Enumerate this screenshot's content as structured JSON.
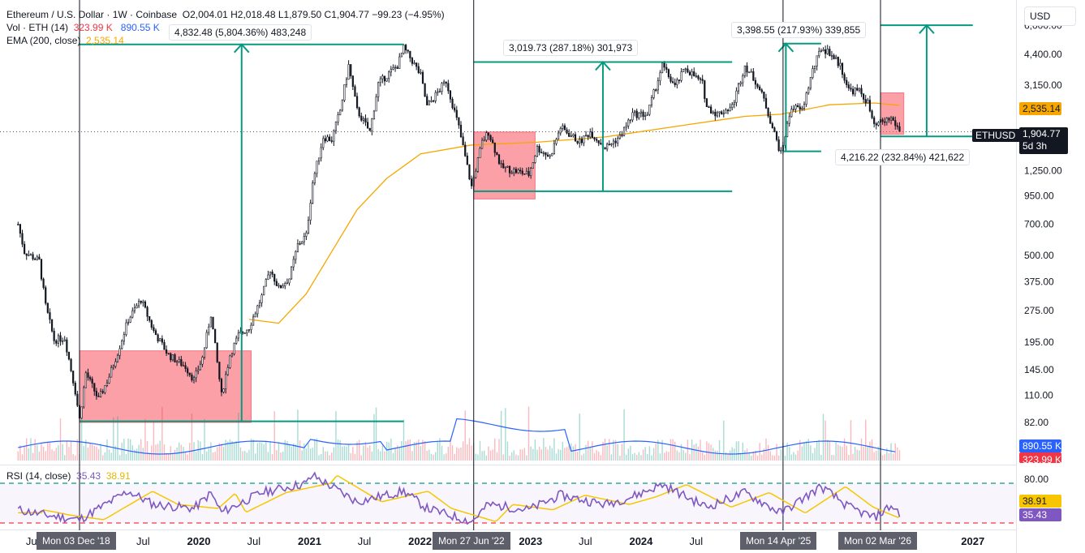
{
  "header": {
    "symbol_line": "Ethereum / U.S. Dollar · 1W · Coinbase",
    "ohlc": "O2,004.01  H2,018.48  L1,879.50  C1,904.77  −99.23 (−4.95%)",
    "vol_label": "Vol · ETH (14)",
    "vol_value1": "323.99 K",
    "vol_value2": "890.55 K",
    "ema_label": "EMA (200, close)",
    "ema_value": "2,535.14",
    "rsi_label": "RSI (14, close)",
    "rsi_value1": "35.43",
    "rsi_value2": "38.91"
  },
  "currency_button": "USD",
  "price_tags": {
    "ema": "2,535.14",
    "symbol": "ETHUSD",
    "last": "1,904.77",
    "countdown": "5d 3h",
    "vol_avg": "890.55 K",
    "vol_last": "323.99 K",
    "rsi_ma": "38.91",
    "rsi": "35.43"
  },
  "annotations": [
    {
      "text": "4,832.48 (5,804.36%) 483,248"
    },
    {
      "text": "3,019.73 (287.18%) 301,973"
    },
    {
      "text": "3,398.55 (217.93%) 339,855"
    },
    {
      "text": "4,216.22 (232.84%) 421,622"
    }
  ],
  "x_markers": [
    "Mon 03 Dec '18",
    "Mon 27 Jun '22",
    "Mon 14 Apr '25",
    "Mon 02 Mar '26"
  ],
  "colors": {
    "up": "#089981",
    "down": "#f23645",
    "ema": "#f7a600",
    "volume_ma": "#2962ff",
    "rsi": "#7e57c2",
    "rsi_ma": "#f7c600",
    "range_box": "#f7525f",
    "measure": "#089981"
  },
  "chart_data": {
    "type": "candlestick",
    "symbol": "ETHUSD",
    "interval": "1W",
    "scale": "log",
    "y_ticks": [
      6000,
      4400,
      3150,
      1250,
      950,
      700,
      500,
      375,
      275,
      195,
      145,
      110,
      82
    ],
    "y_tick_labels": [
      "6,000.00",
      "4,400.00",
      "3,150.00",
      "1,250.00",
      "950.00",
      "700.00",
      "500.00",
      "375.00",
      "275.00",
      "195.00",
      "145.00",
      "110.00",
      "82.00"
    ],
    "x_ticks": [
      {
        "date": "2018-07-01",
        "label": "Jul"
      },
      {
        "date": "2019-07-01",
        "label": "Jul"
      },
      {
        "date": "2020-01-01",
        "label": "2020"
      },
      {
        "date": "2020-07-01",
        "label": "Jul"
      },
      {
        "date": "2021-01-01",
        "label": "2021"
      },
      {
        "date": "2021-07-01",
        "label": "Jul"
      },
      {
        "date": "2022-01-01",
        "label": "2022"
      },
      {
        "date": "2023-01-01",
        "label": "2023"
      },
      {
        "date": "2023-07-01",
        "label": "Jul"
      },
      {
        "date": "2024-01-01",
        "label": "2024"
      },
      {
        "date": "2024-07-01",
        "label": "Jul"
      },
      {
        "date": "2027-01-01",
        "label": "2027"
      }
    ],
    "price_path": [
      [
        "2018-05-14",
        700
      ],
      [
        "2018-06-04",
        520
      ],
      [
        "2018-07-23",
        470
      ],
      [
        "2018-08-13",
        290
      ],
      [
        "2018-09-10",
        200
      ],
      [
        "2018-10-15",
        205
      ],
      [
        "2018-11-19",
        115
      ],
      [
        "2018-12-03",
        85
      ],
      [
        "2018-12-24",
        140
      ],
      [
        "2019-02-04",
        105
      ],
      [
        "2019-03-11",
        135
      ],
      [
        "2019-04-08",
        175
      ],
      [
        "2019-05-13",
        250
      ],
      [
        "2019-06-24",
        310
      ],
      [
        "2019-08-05",
        220
      ],
      [
        "2019-09-23",
        170
      ],
      [
        "2019-11-18",
        150
      ],
      [
        "2019-12-16",
        130
      ],
      [
        "2020-01-13",
        165
      ],
      [
        "2020-02-10",
        265
      ],
      [
        "2020-03-16",
        110
      ],
      [
        "2020-04-13",
        170
      ],
      [
        "2020-05-11",
        210
      ],
      [
        "2020-06-15",
        230
      ],
      [
        "2020-07-27",
        320
      ],
      [
        "2020-08-24",
        430
      ],
      [
        "2020-09-21",
        350
      ],
      [
        "2020-10-26",
        390
      ],
      [
        "2020-11-23",
        560
      ],
      [
        "2020-12-21",
        620
      ],
      [
        "2021-01-11",
        1100
      ],
      [
        "2021-02-15",
        1800
      ],
      [
        "2021-03-15",
        1750
      ],
      [
        "2021-04-12",
        2400
      ],
      [
        "2021-05-10",
        3900
      ],
      [
        "2021-06-07",
        2400
      ],
      [
        "2021-07-19",
        1900
      ],
      [
        "2021-08-16",
        3200
      ],
      [
        "2021-09-13",
        3500
      ],
      [
        "2021-10-18",
        3900
      ],
      [
        "2021-11-08",
        4700
      ],
      [
        "2021-12-06",
        4100
      ],
      [
        "2022-01-03",
        3500
      ],
      [
        "2022-01-24",
        2500
      ],
      [
        "2022-03-28",
        3300
      ],
      [
        "2022-05-09",
        2000
      ],
      [
        "2022-06-20",
        1050
      ],
      [
        "2022-07-25",
        1700
      ],
      [
        "2022-08-15",
        1900
      ],
      [
        "2022-09-26",
        1300
      ],
      [
        "2022-11-07",
        1250
      ],
      [
        "2022-12-26",
        1200
      ],
      [
        "2023-01-23",
        1600
      ],
      [
        "2023-03-06",
        1450
      ],
      [
        "2023-04-10",
        2000
      ],
      [
        "2023-06-12",
        1700
      ],
      [
        "2023-07-17",
        1900
      ],
      [
        "2023-09-04",
        1600
      ],
      [
        "2023-10-23",
        1800
      ],
      [
        "2023-12-04",
        2300
      ],
      [
        "2024-01-22",
        2300
      ],
      [
        "2024-03-11",
        3900
      ],
      [
        "2024-04-22",
        3100
      ],
      [
        "2024-05-27",
        3800
      ],
      [
        "2024-07-22",
        3200
      ],
      [
        "2024-08-05",
        2500
      ],
      [
        "2024-09-09",
        2300
      ],
      [
        "2024-10-28",
        2500
      ],
      [
        "2024-12-09",
        3900
      ],
      [
        "2025-01-13",
        3300
      ],
      [
        "2025-02-10",
        2700
      ],
      [
        "2025-03-10",
        2000
      ],
      [
        "2025-04-07",
        1500
      ],
      [
        "2025-05-12",
        2500
      ],
      [
        "2025-06-16",
        2400
      ],
      [
        "2025-07-21",
        3700
      ],
      [
        "2025-08-18",
        4700
      ],
      [
        "2025-09-15",
        4500
      ],
      [
        "2025-10-20",
        3900
      ],
      [
        "2025-11-17",
        3000
      ],
      [
        "2025-12-22",
        2950
      ],
      [
        "2026-01-19",
        2600
      ],
      [
        "2026-02-09",
        2000
      ],
      [
        "2026-03-02",
        2100
      ],
      [
        "2026-04-06",
        2200
      ],
      [
        "2026-04-27",
        2004
      ],
      [
        "2026-05-04",
        1904.77
      ]
    ],
    "ema200_path": [
      [
        "2020-06-15",
        250
      ],
      [
        "2020-09-21",
        240
      ],
      [
        "2020-12-21",
        330
      ],
      [
        "2021-03-15",
        520
      ],
      [
        "2021-06-07",
        820
      ],
      [
        "2021-09-13",
        1150
      ],
      [
        "2022-01-03",
        1500
      ],
      [
        "2022-06-20",
        1650
      ],
      [
        "2023-01-23",
        1700
      ],
      [
        "2023-09-04",
        1800
      ],
      [
        "2024-05-27",
        2050
      ],
      [
        "2024-12-09",
        2250
      ],
      [
        "2025-04-07",
        2300
      ],
      [
        "2025-09-15",
        2550
      ],
      [
        "2026-02-09",
        2600
      ],
      [
        "2026-05-04",
        2535.14
      ]
    ],
    "range_boxes": [
      {
        "start": "2018-12-03",
        "end": "2020-06-22",
        "low": 82,
        "high": 178
      },
      {
        "start": "2022-06-27",
        "end": "2023-01-16",
        "low": 920,
        "high": 1900
      },
      {
        "start": "2026-03-02",
        "end": "2026-05-18",
        "low": 1850,
        "high": 2900
      }
    ],
    "measures": [
      {
        "start": "2018-12-03",
        "end": "2021-11-08",
        "low": 83,
        "high": 4900,
        "label": "4,832.48 (5,804.36%) 483,248"
      },
      {
        "start": "2022-06-27",
        "end": "2024-10-28",
        "low": 1000,
        "high": 4050,
        "label": "3,019.73 (287.18%) 301,973"
      },
      {
        "start": "2025-04-14",
        "end": "2025-08-18",
        "low": 1540,
        "high": 4940,
        "label": "3,398.55 (217.93%) 339,855"
      },
      {
        "start": "2026-03-02",
        "end": "2027-01-01",
        "low": 1810,
        "high": 6025,
        "label": "4,216.22 (232.84%) 421,622"
      }
    ],
    "vertical_markers": [
      "2018-12-03",
      "2022-06-27",
      "2025-04-14",
      "2026-03-02"
    ],
    "last_close": 1904.77,
    "ema200": 2535.14,
    "volume": {
      "last": "323.99 K",
      "ma14": "890.55 K"
    },
    "rsi": {
      "length": 14,
      "upper": 80,
      "lower": 20,
      "last": 35.43,
      "ma": 38.91,
      "path": [
        [
          "2018-05-14",
          40
        ],
        [
          "2018-08-13",
          32
        ],
        [
          "2018-12-03",
          25
        ],
        [
          "2019-05-13",
          68
        ],
        [
          "2019-08-05",
          48
        ],
        [
          "2019-12-16",
          42
        ],
        [
          "2020-02-10",
          65
        ],
        [
          "2020-03-16",
          36
        ],
        [
          "2020-07-27",
          66
        ],
        [
          "2020-12-21",
          80
        ],
        [
          "2021-01-11",
          92
        ],
        [
          "2021-06-07",
          52
        ],
        [
          "2021-11-08",
          68
        ],
        [
          "2022-01-24",
          42
        ],
        [
          "2022-06-20",
          22
        ],
        [
          "2022-08-15",
          48
        ],
        [
          "2022-12-26",
          40
        ],
        [
          "2023-04-10",
          62
        ],
        [
          "2023-09-04",
          48
        ],
        [
          "2023-12-04",
          60
        ],
        [
          "2024-03-11",
          78
        ],
        [
          "2024-08-05",
          44
        ],
        [
          "2024-12-09",
          66
        ],
        [
          "2025-04-07",
          35
        ],
        [
          "2025-08-18",
          75
        ],
        [
          "2025-11-17",
          44
        ],
        [
          "2026-02-09",
          28
        ],
        [
          "2026-04-06",
          46
        ],
        [
          "2026-05-04",
          35.43
        ]
      ]
    }
  }
}
